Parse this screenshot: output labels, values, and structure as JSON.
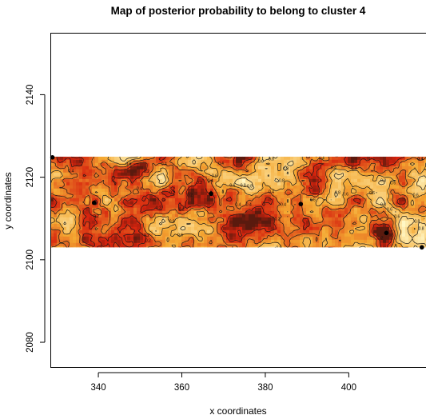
{
  "chart_data": {
    "type": "heatmap",
    "title": "Map of posterior probability to belong to cluster  4",
    "xlabel": "x coordinates",
    "ylabel": "y coordinates",
    "xlim": [
      328.5,
      418.5
    ],
    "ylim": [
      2074,
      2155
    ],
    "xticks": [
      340,
      360,
      380,
      400
    ],
    "yticks": [
      2080,
      2100,
      2120,
      2140
    ],
    "data_extent": {
      "x": [
        328.5,
        418.5
      ],
      "y": [
        2103,
        2125
      ]
    },
    "color_scale": {
      "low": "#d6230e",
      "mid": "#f4a832",
      "high": "#fff7c4",
      "darkest": "#5a1a0e"
    },
    "contour_levels": [
      "0.2",
      "0.4",
      "0.6",
      "0.8"
    ],
    "points": [
      {
        "x": 329,
        "y": 2124.8
      },
      {
        "x": 339,
        "y": 2113.8
      },
      {
        "x": 367,
        "y": 2116
      },
      {
        "x": 388.5,
        "y": 2113.5
      },
      {
        "x": 409,
        "y": 2106.5
      },
      {
        "x": 417.5,
        "y": 2103
      }
    ]
  }
}
